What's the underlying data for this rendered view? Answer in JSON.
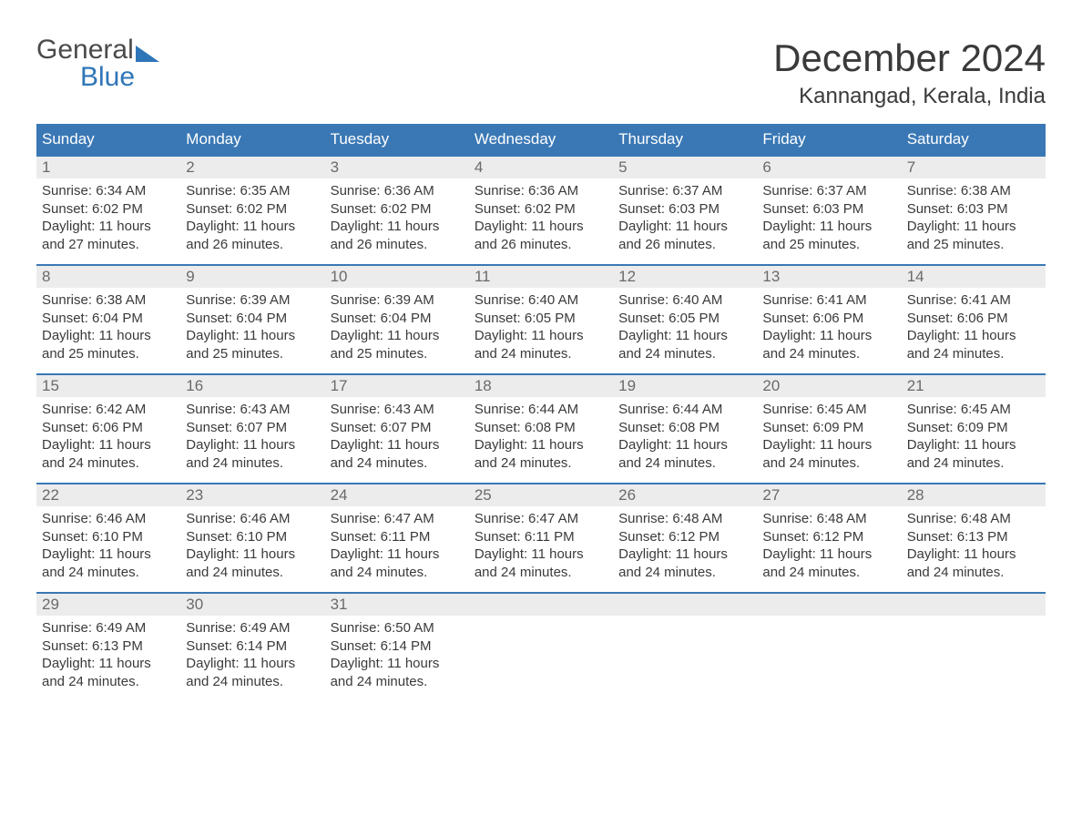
{
  "brand": {
    "part1": "General",
    "part2": "Blue"
  },
  "title": "December 2024",
  "location": "Kannangad, Kerala, India",
  "colors": {
    "header_bg": "#3a78b5",
    "row_divider": "#3a78b5",
    "daynum_bg": "#ececec",
    "text_primary": "#3a3a3a",
    "text_muted": "#6a6a6a",
    "brand_gray": "#4a4a4a",
    "brand_blue": "#2f76b8",
    "background": "#ffffff"
  },
  "typography": {
    "month_title_fontsize": 42,
    "location_fontsize": 24,
    "weekday_fontsize": 17,
    "daynum_fontsize": 17,
    "body_fontsize": 15,
    "logo_fontsize": 30
  },
  "weekdays": [
    "Sunday",
    "Monday",
    "Tuesday",
    "Wednesday",
    "Thursday",
    "Friday",
    "Saturday"
  ],
  "weeks": [
    [
      {
        "n": "1",
        "sr": "Sunrise: 6:34 AM",
        "ss": "Sunset: 6:02 PM",
        "dl1": "Daylight: 11 hours",
        "dl2": "and 27 minutes."
      },
      {
        "n": "2",
        "sr": "Sunrise: 6:35 AM",
        "ss": "Sunset: 6:02 PM",
        "dl1": "Daylight: 11 hours",
        "dl2": "and 26 minutes."
      },
      {
        "n": "3",
        "sr": "Sunrise: 6:36 AM",
        "ss": "Sunset: 6:02 PM",
        "dl1": "Daylight: 11 hours",
        "dl2": "and 26 minutes."
      },
      {
        "n": "4",
        "sr": "Sunrise: 6:36 AM",
        "ss": "Sunset: 6:02 PM",
        "dl1": "Daylight: 11 hours",
        "dl2": "and 26 minutes."
      },
      {
        "n": "5",
        "sr": "Sunrise: 6:37 AM",
        "ss": "Sunset: 6:03 PM",
        "dl1": "Daylight: 11 hours",
        "dl2": "and 26 minutes."
      },
      {
        "n": "6",
        "sr": "Sunrise: 6:37 AM",
        "ss": "Sunset: 6:03 PM",
        "dl1": "Daylight: 11 hours",
        "dl2": "and 25 minutes."
      },
      {
        "n": "7",
        "sr": "Sunrise: 6:38 AM",
        "ss": "Sunset: 6:03 PM",
        "dl1": "Daylight: 11 hours",
        "dl2": "and 25 minutes."
      }
    ],
    [
      {
        "n": "8",
        "sr": "Sunrise: 6:38 AM",
        "ss": "Sunset: 6:04 PM",
        "dl1": "Daylight: 11 hours",
        "dl2": "and 25 minutes."
      },
      {
        "n": "9",
        "sr": "Sunrise: 6:39 AM",
        "ss": "Sunset: 6:04 PM",
        "dl1": "Daylight: 11 hours",
        "dl2": "and 25 minutes."
      },
      {
        "n": "10",
        "sr": "Sunrise: 6:39 AM",
        "ss": "Sunset: 6:04 PM",
        "dl1": "Daylight: 11 hours",
        "dl2": "and 25 minutes."
      },
      {
        "n": "11",
        "sr": "Sunrise: 6:40 AM",
        "ss": "Sunset: 6:05 PM",
        "dl1": "Daylight: 11 hours",
        "dl2": "and 24 minutes."
      },
      {
        "n": "12",
        "sr": "Sunrise: 6:40 AM",
        "ss": "Sunset: 6:05 PM",
        "dl1": "Daylight: 11 hours",
        "dl2": "and 24 minutes."
      },
      {
        "n": "13",
        "sr": "Sunrise: 6:41 AM",
        "ss": "Sunset: 6:06 PM",
        "dl1": "Daylight: 11 hours",
        "dl2": "and 24 minutes."
      },
      {
        "n": "14",
        "sr": "Sunrise: 6:41 AM",
        "ss": "Sunset: 6:06 PM",
        "dl1": "Daylight: 11 hours",
        "dl2": "and 24 minutes."
      }
    ],
    [
      {
        "n": "15",
        "sr": "Sunrise: 6:42 AM",
        "ss": "Sunset: 6:06 PM",
        "dl1": "Daylight: 11 hours",
        "dl2": "and 24 minutes."
      },
      {
        "n": "16",
        "sr": "Sunrise: 6:43 AM",
        "ss": "Sunset: 6:07 PM",
        "dl1": "Daylight: 11 hours",
        "dl2": "and 24 minutes."
      },
      {
        "n": "17",
        "sr": "Sunrise: 6:43 AM",
        "ss": "Sunset: 6:07 PM",
        "dl1": "Daylight: 11 hours",
        "dl2": "and 24 minutes."
      },
      {
        "n": "18",
        "sr": "Sunrise: 6:44 AM",
        "ss": "Sunset: 6:08 PM",
        "dl1": "Daylight: 11 hours",
        "dl2": "and 24 minutes."
      },
      {
        "n": "19",
        "sr": "Sunrise: 6:44 AM",
        "ss": "Sunset: 6:08 PM",
        "dl1": "Daylight: 11 hours",
        "dl2": "and 24 minutes."
      },
      {
        "n": "20",
        "sr": "Sunrise: 6:45 AM",
        "ss": "Sunset: 6:09 PM",
        "dl1": "Daylight: 11 hours",
        "dl2": "and 24 minutes."
      },
      {
        "n": "21",
        "sr": "Sunrise: 6:45 AM",
        "ss": "Sunset: 6:09 PM",
        "dl1": "Daylight: 11 hours",
        "dl2": "and 24 minutes."
      }
    ],
    [
      {
        "n": "22",
        "sr": "Sunrise: 6:46 AM",
        "ss": "Sunset: 6:10 PM",
        "dl1": "Daylight: 11 hours",
        "dl2": "and 24 minutes."
      },
      {
        "n": "23",
        "sr": "Sunrise: 6:46 AM",
        "ss": "Sunset: 6:10 PM",
        "dl1": "Daylight: 11 hours",
        "dl2": "and 24 minutes."
      },
      {
        "n": "24",
        "sr": "Sunrise: 6:47 AM",
        "ss": "Sunset: 6:11 PM",
        "dl1": "Daylight: 11 hours",
        "dl2": "and 24 minutes."
      },
      {
        "n": "25",
        "sr": "Sunrise: 6:47 AM",
        "ss": "Sunset: 6:11 PM",
        "dl1": "Daylight: 11 hours",
        "dl2": "and 24 minutes."
      },
      {
        "n": "26",
        "sr": "Sunrise: 6:48 AM",
        "ss": "Sunset: 6:12 PM",
        "dl1": "Daylight: 11 hours",
        "dl2": "and 24 minutes."
      },
      {
        "n": "27",
        "sr": "Sunrise: 6:48 AM",
        "ss": "Sunset: 6:12 PM",
        "dl1": "Daylight: 11 hours",
        "dl2": "and 24 minutes."
      },
      {
        "n": "28",
        "sr": "Sunrise: 6:48 AM",
        "ss": "Sunset: 6:13 PM",
        "dl1": "Daylight: 11 hours",
        "dl2": "and 24 minutes."
      }
    ],
    [
      {
        "n": "29",
        "sr": "Sunrise: 6:49 AM",
        "ss": "Sunset: 6:13 PM",
        "dl1": "Daylight: 11 hours",
        "dl2": "and 24 minutes."
      },
      {
        "n": "30",
        "sr": "Sunrise: 6:49 AM",
        "ss": "Sunset: 6:14 PM",
        "dl1": "Daylight: 11 hours",
        "dl2": "and 24 minutes."
      },
      {
        "n": "31",
        "sr": "Sunrise: 6:50 AM",
        "ss": "Sunset: 6:14 PM",
        "dl1": "Daylight: 11 hours",
        "dl2": "and 24 minutes."
      },
      null,
      null,
      null,
      null
    ]
  ]
}
